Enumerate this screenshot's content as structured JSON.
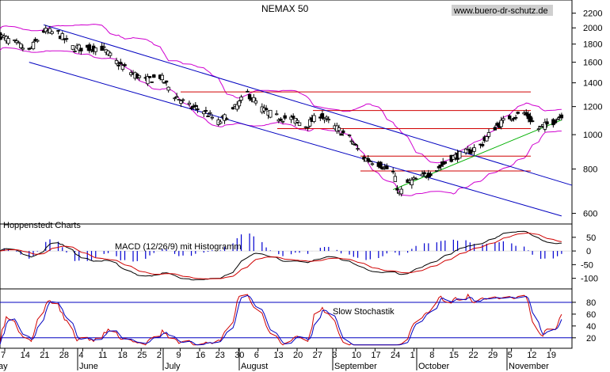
{
  "chart_data": [
    {
      "type": "candlestick",
      "title": "NEMAX 50",
      "watermark": "www.buero-dr-schutz.de",
      "source_label": "Hoppenstedt Charts",
      "y_scale": "log",
      "ylim": [
        560,
        2300
      ],
      "y_ticks": [
        600,
        800,
        1000,
        1200,
        1400,
        1600,
        1800,
        2000,
        2200
      ],
      "price_path": [
        {
          "day": 0,
          "value": 1900
        },
        {
          "day": 8,
          "value": 1800
        },
        {
          "day": 14,
          "value": 1720
        },
        {
          "day": 21,
          "value": 1960
        },
        {
          "day": 28,
          "value": 1930
        },
        {
          "day": 35,
          "value": 1760
        },
        {
          "day": 42,
          "value": 1750
        },
        {
          "day": 49,
          "value": 1760
        },
        {
          "day": 56,
          "value": 1600
        },
        {
          "day": 63,
          "value": 1500
        },
        {
          "day": 70,
          "value": 1420
        },
        {
          "day": 77,
          "value": 1460
        },
        {
          "day": 84,
          "value": 1290
        },
        {
          "day": 91,
          "value": 1200
        },
        {
          "day": 98,
          "value": 1170
        },
        {
          "day": 105,
          "value": 1080
        },
        {
          "day": 112,
          "value": 1170
        },
        {
          "day": 119,
          "value": 1310
        },
        {
          "day": 126,
          "value": 1180
        },
        {
          "day": 133,
          "value": 1120
        },
        {
          "day": 140,
          "value": 1110
        },
        {
          "day": 147,
          "value": 1060
        },
        {
          "day": 154,
          "value": 1140
        },
        {
          "day": 161,
          "value": 1050
        },
        {
          "day": 168,
          "value": 980
        },
        {
          "day": 175,
          "value": 860
        },
        {
          "day": 182,
          "value": 830
        },
        {
          "day": 189,
          "value": 780
        },
        {
          "day": 192,
          "value": 680
        },
        {
          "day": 196,
          "value": 730
        },
        {
          "day": 203,
          "value": 760
        },
        {
          "day": 210,
          "value": 800
        },
        {
          "day": 217,
          "value": 860
        },
        {
          "day": 224,
          "value": 890
        },
        {
          "day": 231,
          "value": 930
        },
        {
          "day": 238,
          "value": 1050
        },
        {
          "day": 245,
          "value": 1120
        },
        {
          "day": 252,
          "value": 1150
        },
        {
          "day": 259,
          "value": 1040
        },
        {
          "day": 266,
          "value": 1090
        },
        {
          "day": 270,
          "value": 1140
        }
      ],
      "horizontal_levels": [
        1320,
        1170,
        1040,
        870,
        790
      ],
      "trend_channel": {
        "upper": [
          {
            "day": 21,
            "value": 2040
          },
          {
            "day": 300,
            "value": 720
          }
        ],
        "lower": [
          {
            "day": 14,
            "value": 1600
          },
          {
            "day": 270,
            "value": 590
          }
        ],
        "support": [
          {
            "day": 189,
            "value": 700
          },
          {
            "day": 270,
            "value": 1100
          }
        ]
      },
      "bollinger_bands": true
    },
    {
      "type": "line",
      "title": "MACD (12/26/9) mit Histogramm",
      "y_ticks": [
        50,
        0,
        -50,
        -100
      ],
      "ylim": [
        -130,
        90
      ],
      "histogram": true
    },
    {
      "type": "line",
      "title": "Slow Stochastik",
      "y_ticks": [
        80,
        60,
        40,
        20
      ],
      "ylim": [
        5,
        100
      ],
      "levels": [
        80,
        20
      ]
    }
  ],
  "x_axis": {
    "day_labels": [
      "7",
      "14",
      "21",
      "28",
      "4",
      "11",
      "18",
      "25",
      "2",
      "9",
      "16",
      "23",
      "30",
      "6",
      "13",
      "20",
      "27",
      "3",
      "10",
      "17",
      "24",
      "1",
      "8",
      "15",
      "22",
      "29",
      "5",
      "12",
      "19"
    ],
    "month_labels": [
      "ay",
      "June",
      "July",
      "August",
      "September",
      "October",
      "November"
    ]
  }
}
